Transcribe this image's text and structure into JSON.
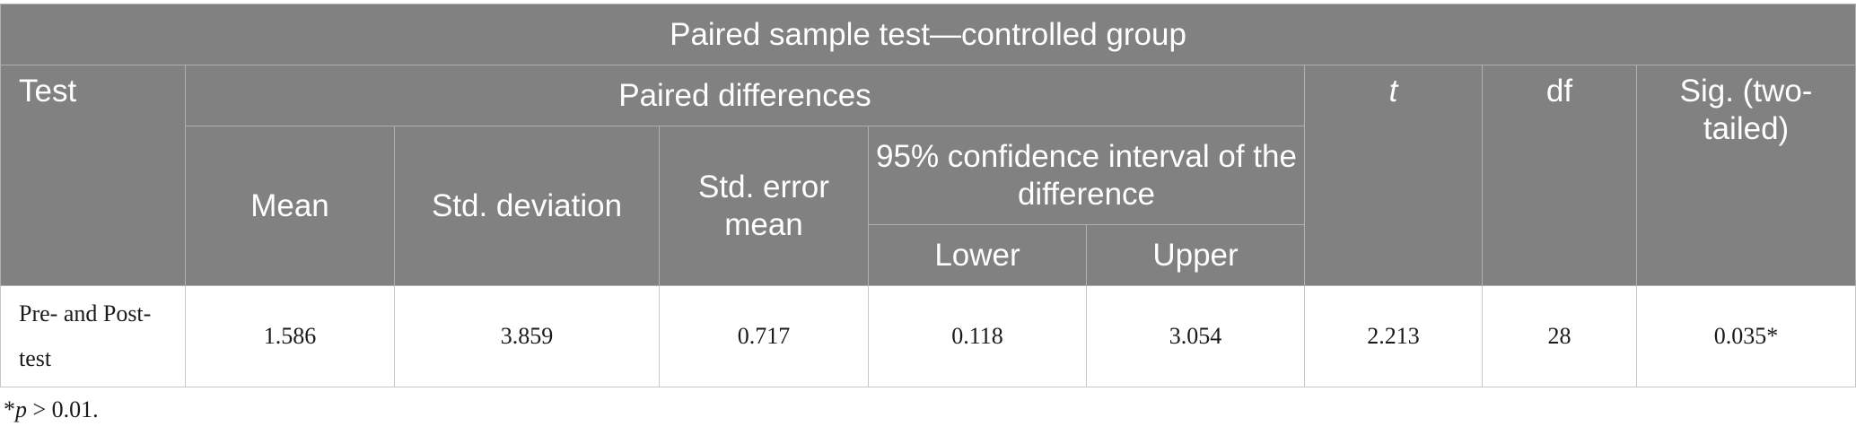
{
  "table": {
    "title": "Paired sample test—controlled group",
    "headers": {
      "test": "Test",
      "paired_differences": "Paired differences",
      "t": "t",
      "df": "df",
      "sig": "Sig. (two-tailed)",
      "mean": "Mean",
      "std_deviation": "Std. deviation",
      "std_error_mean": "Std. error mean",
      "confidence_interval": "95% confidence interval of the difference",
      "lower": "Lower",
      "upper": "Upper"
    },
    "rows": [
      {
        "test": "Pre- and Post-test",
        "mean": "1.586",
        "std_deviation": "3.859",
        "std_error_mean": "0.717",
        "lower": "0.118",
        "upper": "3.054",
        "t": "2.213",
        "df": "28",
        "sig": "0.035*"
      }
    ]
  },
  "footnote": {
    "marker": "*",
    "symbol": "p",
    "text": " > 0.01."
  }
}
